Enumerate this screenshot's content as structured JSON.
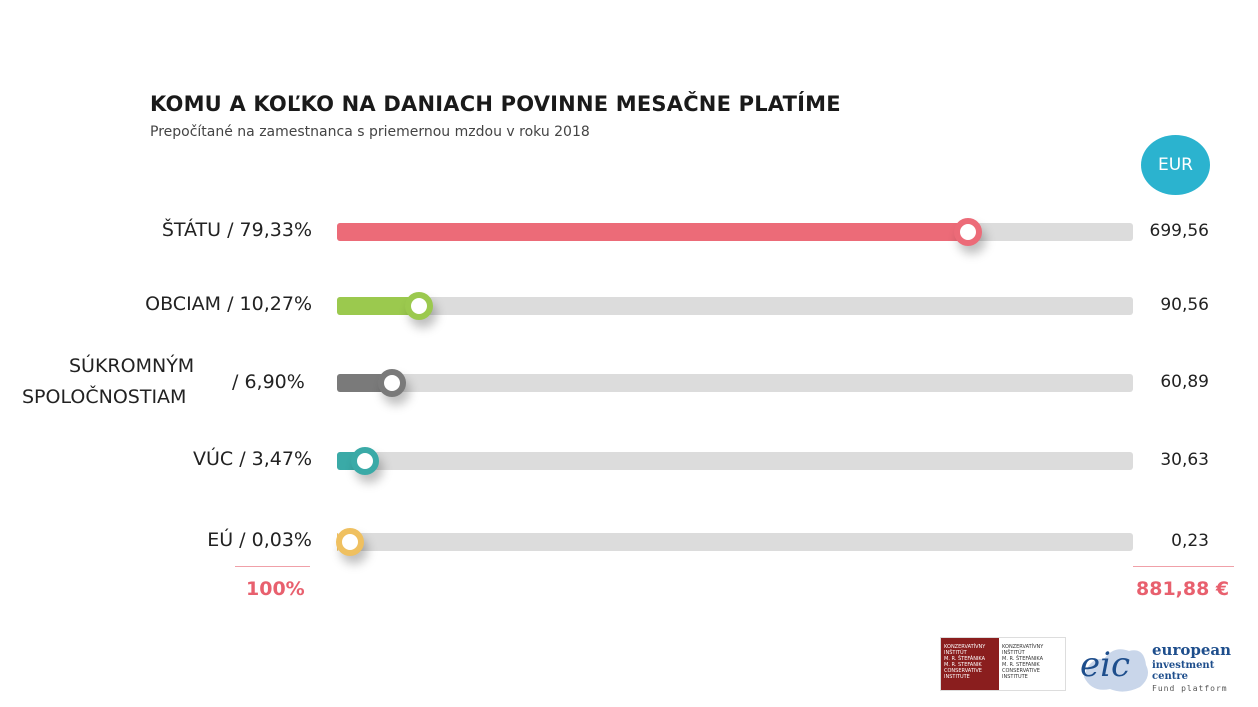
{
  "chart_data": {
    "type": "bar",
    "title": "KOMU A KOĽKO NA DANIACH POVINNE MESAČNE PLATÍME",
    "subtitle": "Prepočítané na zamestnanca s priemernou mzdou v roku 2018",
    "unit": "EUR",
    "categories": [
      "ŠTÁTU",
      "OBCIAM",
      "SÚKROMNÝM SPOLOČNOSTIAM",
      "VÚC",
      "EÚ"
    ],
    "category_labels": [
      [
        "ŠTÁTU / 79,33%"
      ],
      [
        "OBCIAM / 10,27%"
      ],
      [
        "SÚKROMNÝM",
        "SPOLOČNOSTIAM",
        "/ 6,90%"
      ],
      [
        "VÚC / 3,47%"
      ],
      [
        "EÚ / 0,03%"
      ]
    ],
    "percent": [
      79.33,
      10.27,
      6.9,
      3.47,
      0.03
    ],
    "values": [
      699.56,
      90.56,
      60.89,
      30.63,
      0.23
    ],
    "value_labels": [
      "699,56",
      "90,56",
      "60,89",
      "30,63",
      "0,23"
    ],
    "colors": [
      "#ec6b78",
      "#9bc94e",
      "#7a7a7a",
      "#3aaaa7",
      "#efc060"
    ],
    "xlim": [
      0,
      100
    ],
    "total_percent": "100%",
    "total_value": "881,88 €"
  },
  "logos": {
    "kisf_red": [
      "KONZERVATÍVNY",
      "INŠTITÚT",
      "M. R. ŠTEFÁNIKA",
      "M. R. STEFANIK",
      "CONSERVATIVE",
      "INSTITUTE"
    ],
    "kisf_plain": [
      "KONZERVATÍVNY",
      "INŠTITÚT",
      "M. R. ŠTEFÁNIKA",
      "M. R. STEFANIK",
      "CONSERVATIVE",
      "INSTITUTE"
    ],
    "eic_mark": "eic",
    "eic_name": "european",
    "eic_sub": "investment centre",
    "eic_fund": "Fund platform"
  }
}
